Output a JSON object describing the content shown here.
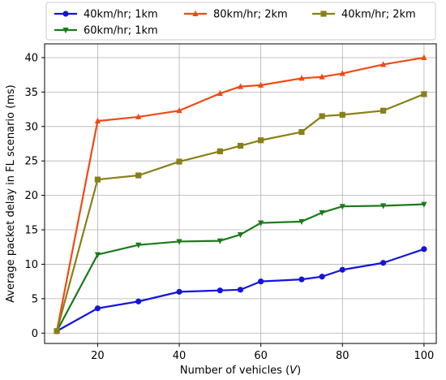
{
  "chart_data": {
    "type": "line",
    "xlabel": "Number of vehicles (V)",
    "xlabel_main": "Number of vehicles (",
    "xlabel_var": "V",
    "xlabel_end": ")",
    "ylabel": "Average packet delay in FL scenario (ms)",
    "xlim": [
      7,
      103
    ],
    "ylim": [
      -1.5,
      42
    ],
    "xticks": [
      20,
      40,
      60,
      80,
      100
    ],
    "yticks": [
      0,
      5,
      10,
      15,
      20,
      25,
      30,
      35,
      40
    ],
    "grid": true,
    "legend_position": "top",
    "series": [
      {
        "name": "40km/hr; 1km",
        "color": "#1414dc",
        "marker": "circle",
        "x": [
          10,
          20,
          30,
          40,
          50,
          55,
          60,
          70,
          75,
          80,
          90,
          100
        ],
        "y": [
          0.3,
          3.6,
          4.6,
          6.0,
          6.2,
          6.3,
          7.5,
          7.8,
          8.2,
          9.2,
          10.2,
          12.2
        ]
      },
      {
        "name": "60km/hr; 1km",
        "color": "#1a7a1a",
        "marker": "triangle-down",
        "x": [
          10,
          20,
          30,
          40,
          50,
          55,
          60,
          70,
          75,
          80,
          90,
          100
        ],
        "y": [
          0.3,
          11.4,
          12.8,
          13.3,
          13.4,
          14.3,
          16.0,
          16.2,
          17.5,
          18.4,
          18.5,
          18.7
        ]
      },
      {
        "name": "80km/hr; 2km",
        "color": "#f04a14",
        "marker": "triangle-up",
        "x": [
          10,
          20,
          30,
          40,
          50,
          55,
          60,
          70,
          75,
          80,
          90,
          100
        ],
        "y": [
          0.3,
          30.8,
          31.4,
          32.3,
          34.8,
          35.8,
          36.0,
          37.0,
          37.2,
          37.7,
          39.0,
          40.0
        ]
      },
      {
        "name": "40km/hr; 2km",
        "color": "#888018",
        "marker": "square",
        "x": [
          10,
          20,
          30,
          40,
          50,
          55,
          60,
          70,
          75,
          80,
          90,
          100
        ],
        "y": [
          0.3,
          22.3,
          22.9,
          24.9,
          26.4,
          27.2,
          28.0,
          29.2,
          31.5,
          31.7,
          32.3,
          34.7
        ]
      }
    ],
    "legend_order": [
      0,
      2,
      3,
      1
    ]
  }
}
